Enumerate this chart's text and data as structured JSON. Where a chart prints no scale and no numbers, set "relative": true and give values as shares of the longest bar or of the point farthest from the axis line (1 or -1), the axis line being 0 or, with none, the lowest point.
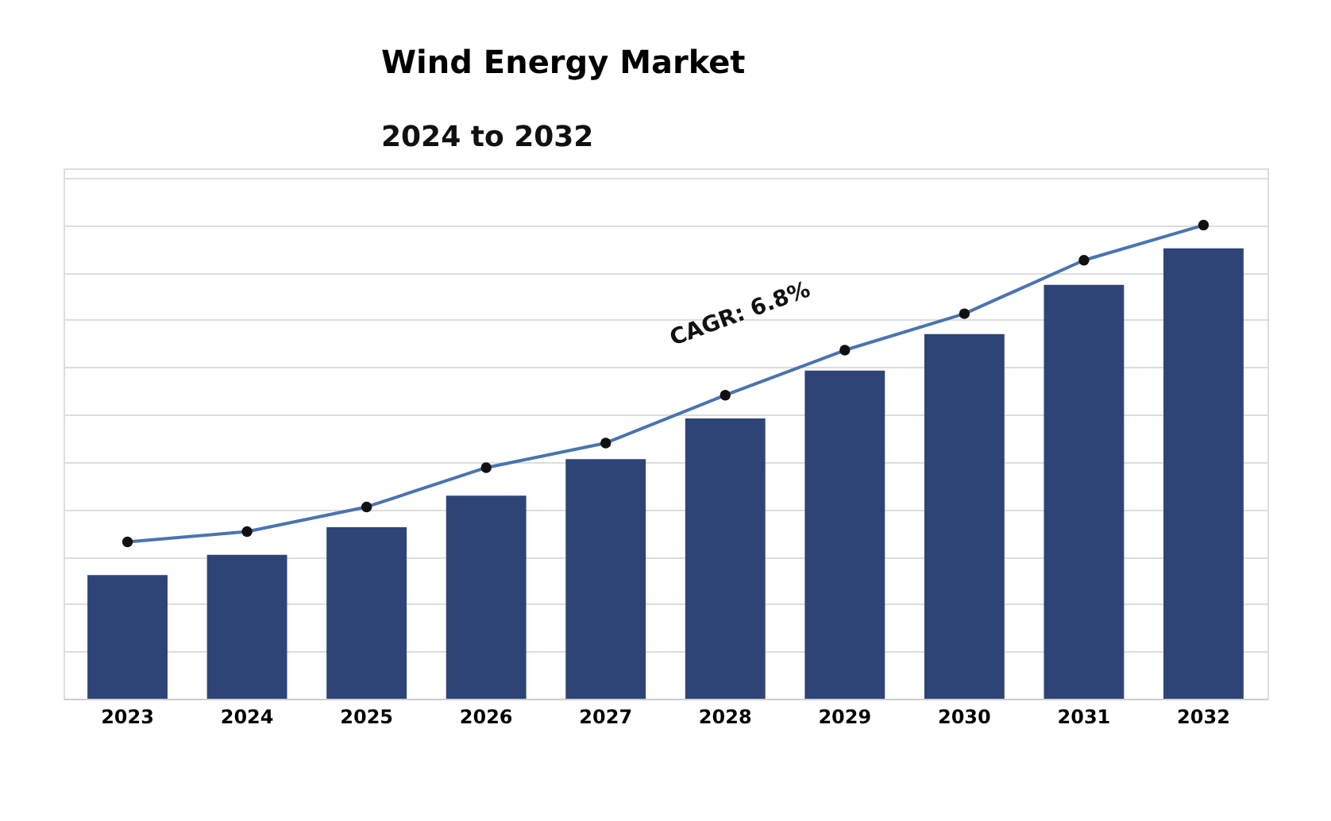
{
  "chart_data": {
    "type": "bar",
    "title": "Wind Energy Market",
    "subtitle": "2024 to 2032",
    "relative": true,
    "grid": "y",
    "categories": [
      "2023",
      "2024",
      "2025",
      "2026",
      "2027",
      "2028",
      "2029",
      "2030",
      "2031",
      "2032"
    ],
    "series": [
      {
        "color": "#2f4476",
        "values": [
          0.261,
          0.304,
          0.362,
          0.429,
          0.506,
          0.592,
          0.693,
          0.77,
          0.874,
          0.951
        ]
      },
      {
        "type": "line",
        "color": "#4a74b0",
        "marker": "circle",
        "values": [
          0.331,
          0.353,
          0.405,
          0.488,
          0.54,
          0.641,
          0.736,
          0.813,
          0.926,
          1.0
        ]
      }
    ],
    "annotations": [
      "CAGR: 6.8%"
    ]
  }
}
